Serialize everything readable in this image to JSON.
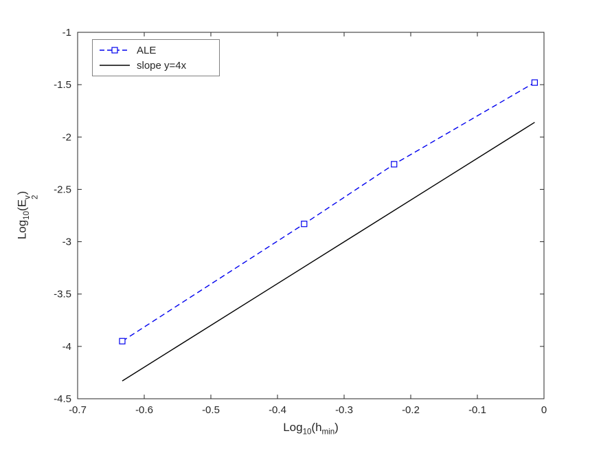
{
  "chart_data": {
    "type": "line",
    "title": "",
    "xlabel": "Log_10(h_min)",
    "ylabel": "Log_10(E_2^v)",
    "xlabel_parts": {
      "fn": "Log",
      "fnsub": "10",
      "mid": "(h",
      "sub": "min",
      "close": ")"
    },
    "ylabel_parts": {
      "fn": "Log",
      "fnsub": "10",
      "mid": "(E",
      "sup": "v",
      "sub": "2",
      "close": ")"
    },
    "xlim": [
      -0.7,
      0
    ],
    "ylim": [
      -4.5,
      -1
    ],
    "xticks": [
      -0.7,
      -0.6,
      -0.5,
      -0.4,
      -0.3,
      -0.2,
      -0.1,
      0
    ],
    "xtick_labels": [
      "-0.7",
      "-0.6",
      "-0.5",
      "-0.4",
      "-0.3",
      "-0.2",
      "-0.1",
      "0"
    ],
    "yticks": [
      -4.5,
      -4,
      -3.5,
      -3,
      -2.5,
      -2,
      -1.5,
      -1
    ],
    "ytick_labels": [
      "-4.5",
      "-4",
      "-3.5",
      "-3",
      "-2.5",
      "-2",
      "-1.5",
      "-1"
    ],
    "grid": false,
    "legend": {
      "position": "top-left",
      "entries": [
        "ALE",
        "slope y=4x"
      ]
    },
    "axes_color": "#262626",
    "background": "#ffffff",
    "series": [
      {
        "name": "ALE",
        "color": "#0000EE",
        "line": "dashed",
        "marker": "square",
        "x": [
          -0.633,
          -0.36,
          -0.225,
          -0.014
        ],
        "y": [
          -3.95,
          -2.83,
          -2.26,
          -1.48
        ]
      },
      {
        "name": "slope y=4x",
        "color": "#000000",
        "line": "solid",
        "marker": "none",
        "x": [
          -0.633,
          -0.014
        ],
        "y": [
          -4.33,
          -1.86
        ]
      }
    ]
  }
}
